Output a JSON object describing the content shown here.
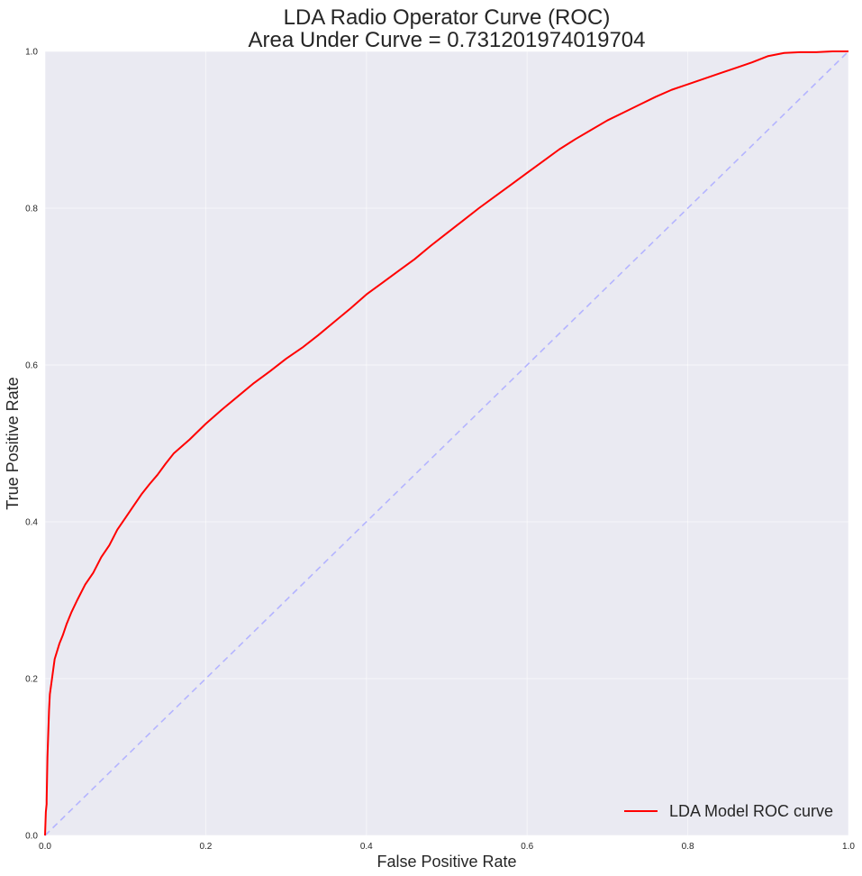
{
  "chart_data": {
    "type": "line",
    "title_line1": "LDA Radio Operator Curve (ROC)",
    "title_line2": "Area Under Curve = 0.731201974019704",
    "xlabel": "False Positive Rate",
    "ylabel": "True Positive Rate",
    "xlim": [
      0.0,
      1.0
    ],
    "ylim": [
      0.0,
      1.0
    ],
    "xticks": [
      0.0,
      0.2,
      0.4,
      0.6,
      0.8,
      1.0
    ],
    "xtick_labels": [
      "0.0",
      "0.2",
      "0.4",
      "0.6",
      "0.8",
      "1.0"
    ],
    "yticks": [
      0.0,
      0.2,
      0.4,
      0.6,
      0.8,
      1.0
    ],
    "ytick_labels": [
      "0.0",
      "0.2",
      "0.4",
      "0.6",
      "0.8",
      "1.0"
    ],
    "grid": true,
    "background_color": "#eaeaf2",
    "grid_color": "#ffffff",
    "legend_position": "lower right",
    "series": [
      {
        "name": "LDA Model ROC curve",
        "color": "#ff0000",
        "style": "solid",
        "x": [
          0.0,
          0.001,
          0.002,
          0.002,
          0.003,
          0.004,
          0.005,
          0.006,
          0.008,
          0.01,
          0.012,
          0.015,
          0.018,
          0.022,
          0.027,
          0.033,
          0.04,
          0.05,
          0.06,
          0.07,
          0.08,
          0.09,
          0.1,
          0.11,
          0.12,
          0.13,
          0.14,
          0.15,
          0.16,
          0.18,
          0.2,
          0.22,
          0.24,
          0.26,
          0.28,
          0.3,
          0.32,
          0.34,
          0.36,
          0.38,
          0.4,
          0.42,
          0.44,
          0.46,
          0.48,
          0.5,
          0.52,
          0.54,
          0.56,
          0.58,
          0.6,
          0.62,
          0.64,
          0.66,
          0.68,
          0.7,
          0.72,
          0.74,
          0.76,
          0.78,
          0.8,
          0.82,
          0.84,
          0.86,
          0.88,
          0.9,
          0.92,
          0.94,
          0.96,
          0.98,
          1.0
        ],
        "y": [
          0.0,
          0.03,
          0.04,
          0.045,
          0.1,
          0.13,
          0.16,
          0.18,
          0.195,
          0.21,
          0.225,
          0.235,
          0.245,
          0.255,
          0.27,
          0.285,
          0.3,
          0.32,
          0.335,
          0.355,
          0.37,
          0.39,
          0.405,
          0.42,
          0.435,
          0.448,
          0.46,
          0.474,
          0.487,
          0.505,
          0.525,
          0.543,
          0.56,
          0.577,
          0.592,
          0.608,
          0.622,
          0.638,
          0.655,
          0.672,
          0.69,
          0.705,
          0.72,
          0.735,
          0.752,
          0.768,
          0.784,
          0.8,
          0.815,
          0.83,
          0.845,
          0.86,
          0.875,
          0.888,
          0.9,
          0.912,
          0.922,
          0.932,
          0.942,
          0.951,
          0.958,
          0.965,
          0.972,
          0.979,
          0.986,
          0.994,
          0.998,
          0.999,
          0.999,
          1.0,
          1.0
        ]
      },
      {
        "name": "",
        "color": "#b4b4ff",
        "style": "dashed",
        "x": [
          0.0,
          1.0
        ],
        "y": [
          0.0,
          1.0
        ]
      }
    ]
  }
}
